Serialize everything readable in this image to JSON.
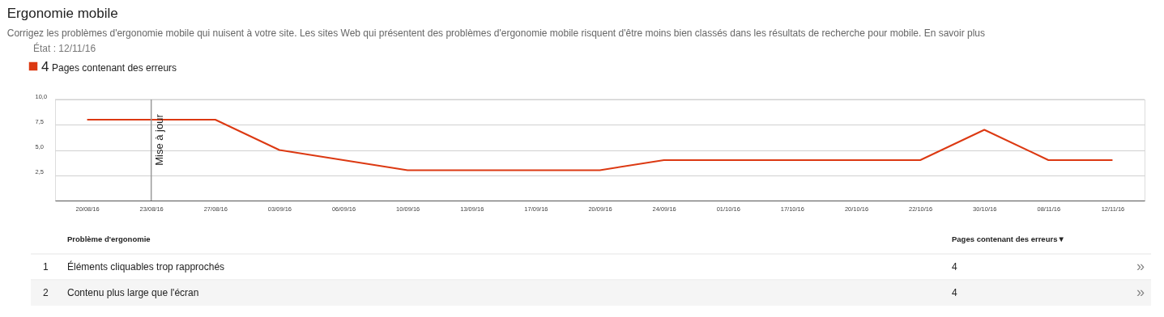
{
  "chart_data": {
    "type": "line",
    "title": "Ergonomie mobile",
    "subtitle": "Corrigez les problèmes d'ergonomie mobile qui nuisent à votre site. Les sites Web qui présentent des problèmes d'ergonomie mobile risquent d'être moins bien classés dans les résultats de recherche pour mobile. En savoir plus",
    "annotations": [
      "État : 12/11/16",
      "4",
      "Problème d'ergonomie",
      "Pages contenant des erreurs▼",
      "1",
      "Éléments cliquables trop rapprochés",
      "4",
      "»",
      "2",
      "Contenu plus large que l'écran",
      "4",
      "»"
    ],
    "categories": [
      "20/08/16",
      "23/08/16",
      "27/08/16",
      "03/09/16",
      "06/09/16",
      "10/09/16",
      "13/09/16",
      "17/09/16",
      "20/09/16",
      "24/09/16",
      "01/10/16",
      "17/10/16",
      "20/10/16",
      "22/10/16",
      "30/10/16",
      "08/11/16",
      "12/11/16"
    ],
    "series": [
      {
        "name": "Pages contenant des erreurs",
        "color": "#dc3912",
        "values": [
          8,
          8,
          8,
          5,
          4,
          3,
          3,
          3,
          3,
          4,
          4,
          4,
          4,
          4,
          7,
          4,
          4
        ]
      }
    ],
    "ylim": [
      0,
      10
    ],
    "yticks": [
      {
        "value": 2.5,
        "label": "2,5"
      },
      {
        "value": 5,
        "label": "5,0"
      },
      {
        "value": 7.5,
        "label": "7,5"
      },
      {
        "value": 10,
        "label": "10,0"
      }
    ],
    "ref_lines": [
      {
        "axis": "x",
        "value": "23/08/16",
        "label": "Mise à jour",
        "color": "#999999"
      }
    ],
    "grid": "y",
    "legend": "top left",
    "marker": "none",
    "line_style": "solid"
  }
}
